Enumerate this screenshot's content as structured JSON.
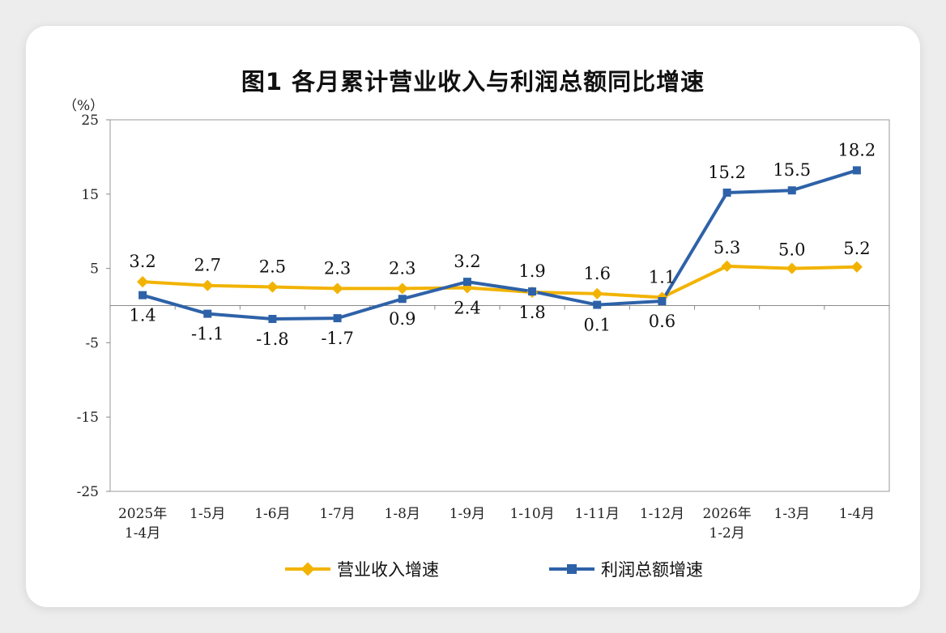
{
  "title": "图1  各月累计营业收入与利润总额同比增速",
  "unit_label": "（%）",
  "colors": {
    "revenue": "#F2B300",
    "profit": "#2E62A8"
  },
  "legend": {
    "revenue_label": "营业收入增速",
    "profit_label": "利润总额增速"
  },
  "chart_data": {
    "type": "line",
    "title": "图1  各月累计营业收入与利润总额同比增速",
    "ylabel": "（%）",
    "ylim": [
      -25,
      25
    ],
    "yticks": [
      25,
      15,
      5,
      -5,
      -15,
      -25
    ],
    "grid": false,
    "legend_position": "bottom",
    "categories": [
      [
        "2025年",
        "1-4月"
      ],
      [
        "1-5月"
      ],
      [
        "1-6月"
      ],
      [
        "1-7月"
      ],
      [
        "1-8月"
      ],
      [
        "1-9月"
      ],
      [
        "1-10月"
      ],
      [
        "1-11月"
      ],
      [
        "1-12月"
      ],
      [
        "2026年",
        "1-2月"
      ],
      [
        "1-3月"
      ],
      [
        "1-4月"
      ]
    ],
    "series": [
      {
        "name": "营业收入增速",
        "values": [
          3.2,
          2.7,
          2.5,
          2.3,
          2.3,
          2.4,
          1.8,
          1.6,
          1.1,
          5.3,
          5.0,
          5.2
        ],
        "labels": [
          "3.2",
          "2.7",
          "2.5",
          "2.3",
          "2.3",
          "2.4",
          "1.8",
          "1.6",
          "1.1",
          "5.3",
          "5.0",
          "5.2"
        ]
      },
      {
        "name": "利润总额增速",
        "values": [
          1.4,
          -1.1,
          -1.8,
          -1.7,
          0.9,
          3.2,
          1.9,
          0.1,
          0.6,
          15.2,
          15.5,
          18.2
        ],
        "labels": [
          "1.4",
          "-1.1",
          "-1.8",
          "-1.7",
          "0.9",
          "3.2",
          "1.9",
          "0.1",
          "0.6",
          "15.2",
          "15.5",
          "18.2"
        ]
      }
    ]
  }
}
